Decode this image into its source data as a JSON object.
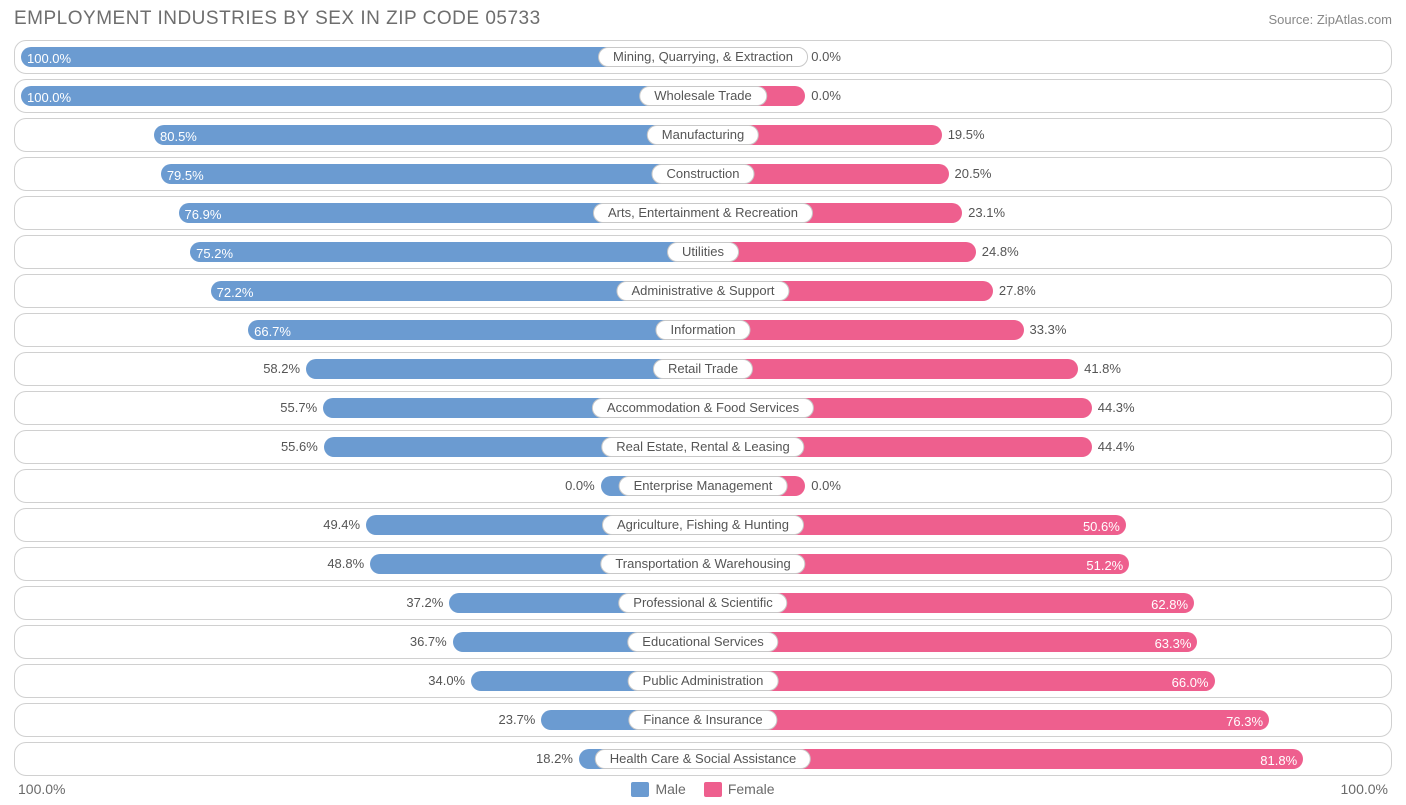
{
  "title": "EMPLOYMENT INDUSTRIES BY SEX IN ZIP CODE 05733",
  "source": "Source: ZipAtlas.com",
  "colors": {
    "male": "#6b9bd1",
    "female": "#ee5f8e",
    "row_border": "#d0d0d0",
    "text": "#555555",
    "title_text": "#6e6e6e",
    "background": "#ffffff"
  },
  "axis": {
    "left_max_label": "100.0%",
    "right_max_label": "100.0%",
    "max_pct": 100.0
  },
  "legend": {
    "male_label": "Male",
    "female_label": "Female"
  },
  "label_value_threshold_inside": 60.0,
  "rows": [
    {
      "category": "Mining, Quarrying, & Extraction",
      "male_pct": 100.0,
      "female_pct": 0.0,
      "male_label": "100.0%",
      "female_label": "0.0%",
      "male_bar": 100.0,
      "female_bar": 15.0
    },
    {
      "category": "Wholesale Trade",
      "male_pct": 100.0,
      "female_pct": 0.0,
      "male_label": "100.0%",
      "female_label": "0.0%",
      "male_bar": 100.0,
      "female_bar": 15.0
    },
    {
      "category": "Manufacturing",
      "male_pct": 80.5,
      "female_pct": 19.5,
      "male_label": "80.5%",
      "female_label": "19.5%",
      "male_bar": 80.5,
      "female_bar": 35.0
    },
    {
      "category": "Construction",
      "male_pct": 79.5,
      "female_pct": 20.5,
      "male_label": "79.5%",
      "female_label": "20.5%",
      "male_bar": 79.5,
      "female_bar": 36.0
    },
    {
      "category": "Arts, Entertainment & Recreation",
      "male_pct": 76.9,
      "female_pct": 23.1,
      "male_label": "76.9%",
      "female_label": "23.1%",
      "male_bar": 76.9,
      "female_bar": 38.0
    },
    {
      "category": "Utilities",
      "male_pct": 75.2,
      "female_pct": 24.8,
      "male_label": "75.2%",
      "female_label": "24.8%",
      "male_bar": 75.2,
      "female_bar": 40.0
    },
    {
      "category": "Administrative & Support",
      "male_pct": 72.2,
      "female_pct": 27.8,
      "male_label": "72.2%",
      "female_label": "27.8%",
      "male_bar": 72.2,
      "female_bar": 42.5
    },
    {
      "category": "Information",
      "male_pct": 66.7,
      "female_pct": 33.3,
      "male_label": "66.7%",
      "female_label": "33.3%",
      "male_bar": 66.7,
      "female_bar": 47.0
    },
    {
      "category": "Retail Trade",
      "male_pct": 58.2,
      "female_pct": 41.8,
      "male_label": "58.2%",
      "female_label": "41.8%",
      "male_bar": 58.2,
      "female_bar": 55.0
    },
    {
      "category": "Accommodation & Food Services",
      "male_pct": 55.7,
      "female_pct": 44.3,
      "male_label": "55.7%",
      "female_label": "44.3%",
      "male_bar": 55.7,
      "female_bar": 57.0
    },
    {
      "category": "Real Estate, Rental & Leasing",
      "male_pct": 55.6,
      "female_pct": 44.4,
      "male_label": "55.6%",
      "female_label": "44.4%",
      "male_bar": 55.6,
      "female_bar": 57.0
    },
    {
      "category": "Enterprise Management",
      "male_pct": 0.0,
      "female_pct": 0.0,
      "male_label": "0.0%",
      "female_label": "0.0%",
      "male_bar": 15.0,
      "female_bar": 15.0
    },
    {
      "category": "Agriculture, Fishing & Hunting",
      "male_pct": 49.4,
      "female_pct": 50.6,
      "male_label": "49.4%",
      "female_label": "50.6%",
      "male_bar": 49.4,
      "female_bar": 62.0
    },
    {
      "category": "Transportation & Warehousing",
      "male_pct": 48.8,
      "female_pct": 51.2,
      "male_label": "48.8%",
      "female_label": "51.2%",
      "male_bar": 48.8,
      "female_bar": 62.5
    },
    {
      "category": "Professional & Scientific",
      "male_pct": 37.2,
      "female_pct": 62.8,
      "male_label": "37.2%",
      "female_label": "62.8%",
      "male_bar": 37.2,
      "female_bar": 72.0
    },
    {
      "category": "Educational Services",
      "male_pct": 36.7,
      "female_pct": 63.3,
      "male_label": "36.7%",
      "female_label": "63.3%",
      "male_bar": 36.7,
      "female_bar": 72.5
    },
    {
      "category": "Public Administration",
      "male_pct": 34.0,
      "female_pct": 66.0,
      "male_label": "34.0%",
      "female_label": "66.0%",
      "male_bar": 34.0,
      "female_bar": 75.0
    },
    {
      "category": "Finance & Insurance",
      "male_pct": 23.7,
      "female_pct": 76.3,
      "male_label": "23.7%",
      "female_label": "76.3%",
      "male_bar": 23.7,
      "female_bar": 83.0
    },
    {
      "category": "Health Care & Social Assistance",
      "male_pct": 18.2,
      "female_pct": 81.8,
      "male_label": "18.2%",
      "female_label": "81.8%",
      "male_bar": 18.2,
      "female_bar": 88.0
    }
  ]
}
